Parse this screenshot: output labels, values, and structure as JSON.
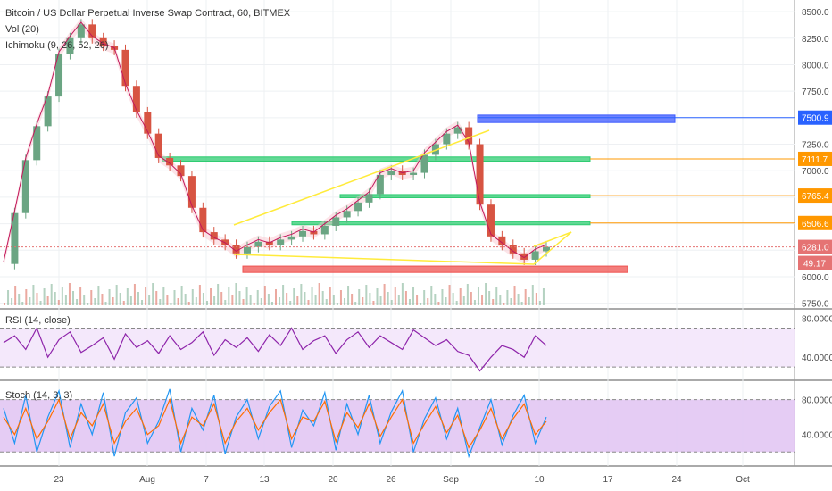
{
  "header": {
    "title": "Bitcoin / US Dollar Perpetual Inverse Swap Contract, 60, BITMEX",
    "indicators": [
      "Vol (20)",
      "Ichimoku (9, 26, 52, 26)"
    ]
  },
  "colors": {
    "up": "#6ba583",
    "down": "#d75442",
    "ichimoku_red": "#c2185b",
    "green_zone": "#2ecc71",
    "blue_zone": "#3d5afe",
    "red_zone": "#ef5350",
    "orange_line": "#ff9800",
    "blue_line": "#2962ff",
    "yellow_line": "#ffeb3b",
    "rsi_line": "#8e24aa",
    "stoch_k": "#2196f3",
    "stoch_d": "#ff6d00"
  },
  "chart_data": [
    {
      "type": "line",
      "title": "Bitcoin / US Dollar Perpetual Inverse Swap Contract, 60, BITMEX",
      "x_ticks": [
        "23",
        "Aug",
        "7",
        "13",
        "20",
        "26",
        "Sep",
        "10",
        "17",
        "24",
        "Oct"
      ],
      "y_ticks": [
        "8500.0",
        "8250.0",
        "8000.0",
        "7750.0",
        "7500.0",
        "7250.0",
        "7000.0",
        "6750.0",
        "6500.0",
        "6250.0",
        "6000.0",
        "5750.0"
      ],
      "ylim": [
        5730,
        8560
      ],
      "series": [
        {
          "values": [
            6120,
            6600,
            7100,
            7420,
            7700,
            8100,
            8250,
            8380,
            8250,
            8180,
            8140,
            7800,
            7550,
            7350,
            7120,
            7050,
            6950,
            6650,
            6420,
            6350,
            6300,
            6220,
            6280,
            6330,
            6300,
            6350,
            6380,
            6430,
            6400,
            6480,
            6560,
            6620,
            6700,
            6780,
            6960,
            7000,
            6960,
            6980,
            7150,
            7250,
            7350,
            7410,
            7250,
            6680,
            6380,
            6300,
            6220,
            6160,
            6240,
            6281
          ]
        }
      ],
      "horizontal_lines": [
        {
          "value": 7500.9,
          "label": "7500.9",
          "color": "#2962ff"
        },
        {
          "value": 7111.7,
          "label": "7111.7",
          "color": "#ff9800"
        },
        {
          "value": 6765.4,
          "label": "6765.4",
          "color": "#ff9800"
        },
        {
          "value": 6506.6,
          "label": "6506.6",
          "color": "#ff9800"
        }
      ],
      "price_badges": [
        {
          "value": 6281.0,
          "label": "6281.0",
          "color": "#e57373"
        },
        {
          "label": "49:17",
          "color": "#e57373"
        }
      ],
      "zones": [
        {
          "from": 7455,
          "to": 7525,
          "color": "#3d5afe"
        },
        {
          "from": 7090,
          "to": 7130,
          "color": "#2ecc71"
        },
        {
          "from": 6745,
          "to": 6775,
          "color": "#2ecc71"
        },
        {
          "from": 6490,
          "to": 6520,
          "color": "#2ecc71"
        },
        {
          "from": 6040,
          "to": 6100,
          "color": "#ef5350"
        }
      ]
    },
    {
      "type": "line",
      "title": "RSI (14, close)",
      "y_ticks": [
        "80.0000",
        "40.0000"
      ],
      "ylim": [
        20,
        86
      ],
      "band": [
        30,
        70
      ],
      "series": [
        {
          "values": [
            55,
            62,
            48,
            70,
            40,
            58,
            66,
            45,
            52,
            60,
            38,
            64,
            50,
            57,
            44,
            62,
            48,
            55,
            66,
            42,
            58,
            50,
            60,
            46,
            63,
            52,
            70,
            48,
            57,
            62,
            44,
            58,
            66,
            50,
            62,
            55,
            48,
            68,
            60,
            52,
            58,
            46,
            42,
            26,
            40,
            52,
            48,
            40,
            62,
            52
          ]
        }
      ]
    },
    {
      "type": "line",
      "title": "Stoch (14, 3, 3)",
      "y_ticks": [
        "80.0000",
        "40.0000"
      ],
      "ylim": [
        8,
        98
      ],
      "band": [
        20,
        80
      ],
      "series": [
        {
          "values": [
            70,
            30,
            85,
            20,
            60,
            90,
            25,
            75,
            40,
            88,
            15,
            65,
            82,
            30,
            55,
            92,
            20,
            70,
            45,
            85,
            18,
            60,
            80,
            35,
            72,
            90,
            25,
            68,
            50,
            88,
            22,
            75,
            40,
            85,
            30,
            66,
            90,
            20,
            58,
            82,
            35,
            70,
            15,
            48,
            80,
            28,
            62,
            85,
            30,
            60
          ]
        },
        {
          "values": [
            60,
            40,
            70,
            35,
            55,
            80,
            35,
            65,
            50,
            75,
            30,
            55,
            70,
            40,
            50,
            80,
            30,
            60,
            50,
            75,
            30,
            55,
            70,
            45,
            65,
            80,
            35,
            60,
            55,
            78,
            32,
            65,
            48,
            75,
            38,
            60,
            80,
            30,
            52,
            72,
            42,
            62,
            25,
            45,
            70,
            35,
            58,
            75,
            40,
            55
          ]
        }
      ]
    }
  ]
}
